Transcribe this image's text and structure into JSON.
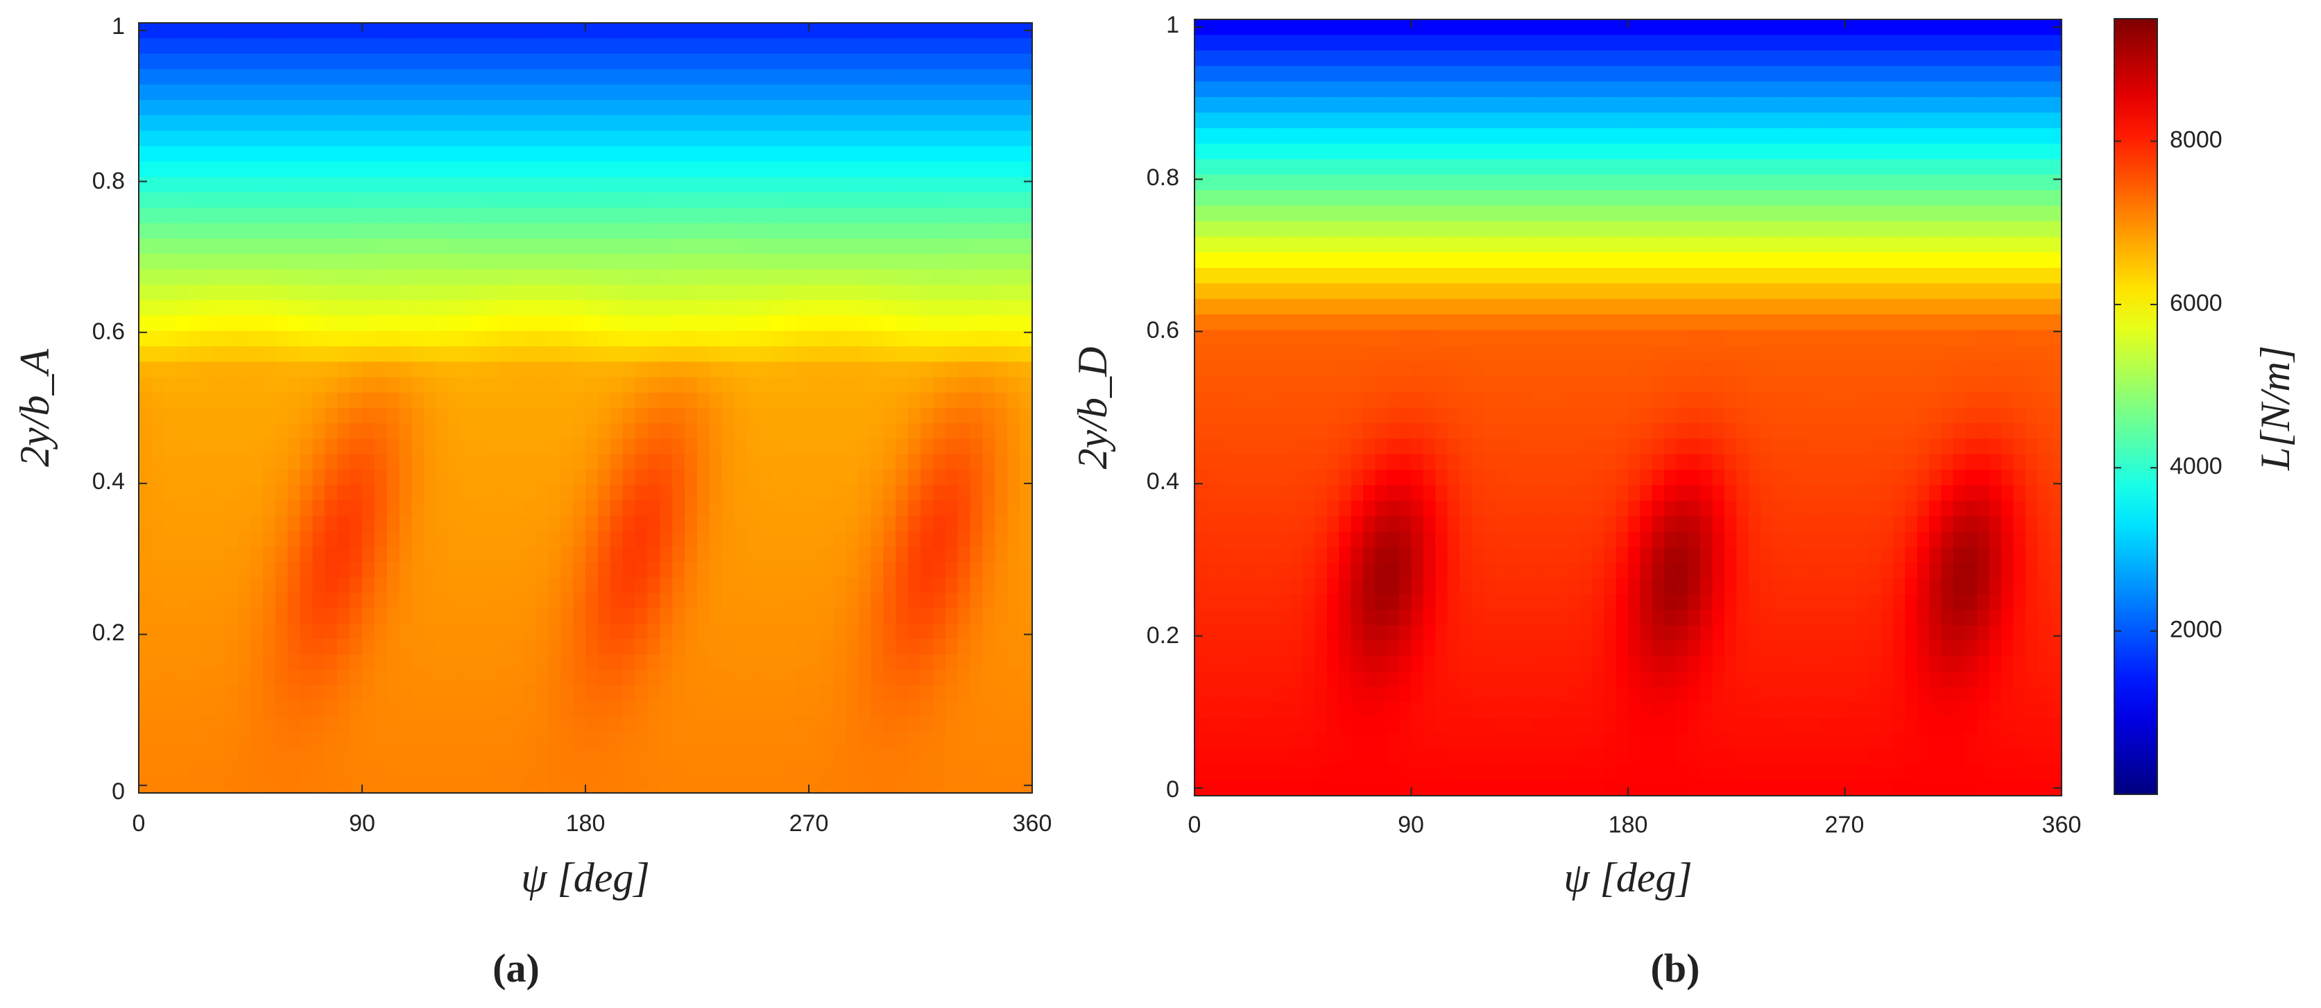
{
  "chart_data": [
    {
      "type": "heatmap",
      "panel_label": "(a)",
      "xlabel": "ψ [deg]",
      "ylabel": "2y/b_A",
      "x_ticks": [
        "0",
        "90",
        "180",
        "270",
        "360"
      ],
      "y_ticks": [
        "0",
        "0.2",
        "0.4",
        "0.6",
        "0.8",
        "1"
      ],
      "xlim": [
        0,
        360
      ],
      "ylim": [
        -0.01,
        1.01
      ],
      "peak_azimuths_deg": [
        80,
        200,
        320
      ],
      "peak_span_location": 0.3,
      "peak_value": 7700,
      "root_value": 7100,
      "tip_value": 1600,
      "grid": false
    },
    {
      "type": "heatmap",
      "panel_label": "(b)",
      "xlabel": "ψ [deg]",
      "ylabel": "2y/b_D",
      "x_ticks": [
        "0",
        "90",
        "180",
        "270",
        "360"
      ],
      "y_ticks": [
        "0",
        "0.2",
        "0.4",
        "0.6",
        "0.8",
        "1"
      ],
      "xlim": [
        0,
        360
      ],
      "ylim": [
        -0.01,
        1.01
      ],
      "peak_azimuths_deg": [
        80,
        200,
        320
      ],
      "peak_span_location": 0.28,
      "peak_value": 9400,
      "root_value": 8300,
      "tip_value": 1200,
      "grid": false
    }
  ],
  "colorbar": {
    "label": "L[N/m]",
    "ticks": [
      "2000",
      "4000",
      "6000",
      "8000"
    ],
    "tick_values": [
      2000,
      4000,
      6000,
      8000
    ],
    "range": [
      0,
      9500
    ],
    "colormap": "jet"
  }
}
